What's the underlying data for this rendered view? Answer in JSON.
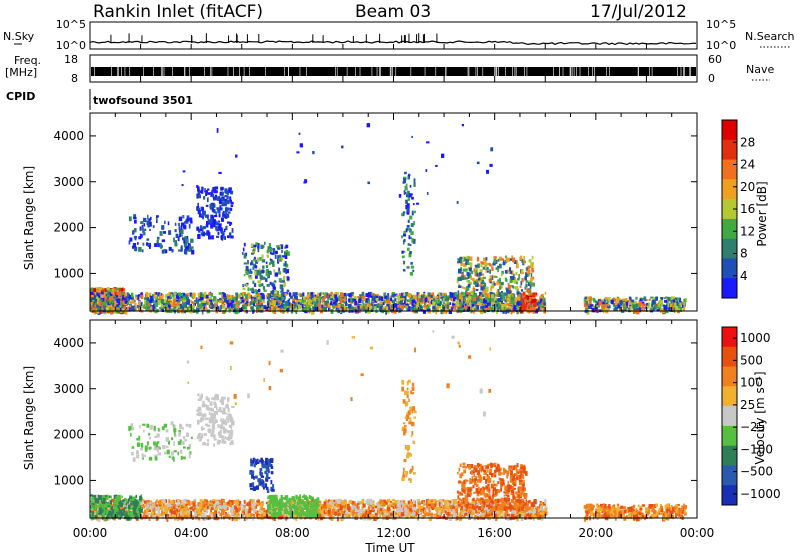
{
  "header": {
    "station": "Rankin Inlet (fitACF)",
    "beam": "Beam 03",
    "date": "17/Jul/2012"
  },
  "noise_panel": {
    "left_label": "N.Sky",
    "right_label": "N.Search",
    "y_top_label": "10^5",
    "y_bottom_label": "10^0",
    "right_top_label": "10^5",
    "right_bottom_label": "10^0"
  },
  "freq_panel": {
    "left_label_line1": "Freq.",
    "left_label_line2": "[MHz]",
    "right_label": "Nave",
    "left_ticks": [
      "18",
      "8"
    ],
    "right_ticks": [
      "60",
      "0"
    ]
  },
  "cpid_panel": {
    "left_label": "CPID",
    "program": "twofsound 3501"
  },
  "chart_data": [
    {
      "type": "heatmap",
      "name": "power",
      "ylabel": "Slant Range [km]",
      "y_ticks": [
        "1000",
        "2000",
        "3000",
        "4000"
      ],
      "ylim": [
        180,
        4500
      ],
      "x_ticks": [
        "00:00",
        "04:00",
        "08:00",
        "12:00",
        "16:00",
        "20:00",
        "00:00"
      ],
      "xlim_hours": [
        0,
        24
      ],
      "colorbar": {
        "label": "Power [dB]",
        "ticks": [
          "4",
          "8",
          "12",
          "16",
          "20",
          "24",
          "28"
        ],
        "colors": [
          "#1a1aff",
          "#1f4fb4",
          "#2f7f6f",
          "#3faa3f",
          "#b4c832",
          "#f0a020",
          "#f07020",
          "#e03010",
          "#dd0000"
        ]
      }
    },
    {
      "type": "heatmap",
      "name": "velocity",
      "ylabel": "Slant Range [km]",
      "y_ticks": [
        "1000",
        "2000",
        "3000",
        "4000"
      ],
      "ylim": [
        180,
        4500
      ],
      "x_ticks": [
        "00:00",
        "04:00",
        "08:00",
        "12:00",
        "16:00",
        "20:00",
        "00:00"
      ],
      "xlabel": "Time UT",
      "colorbar": {
        "label": "Velocity [m s⁻¹]",
        "ticks": [
          "1000",
          "500",
          "100",
          "25",
          "−25",
          "−100",
          "−500",
          "−1000"
        ],
        "colors": [
          "#1a2fb8",
          "#2a5ab0",
          "#2e7f58",
          "#55c040",
          "#c8c8c8",
          "#f0b030",
          "#f08020",
          "#e85010",
          "#ee1111"
        ]
      }
    }
  ],
  "colors": {
    "frame": "#000000",
    "background": "#ffffff"
  }
}
